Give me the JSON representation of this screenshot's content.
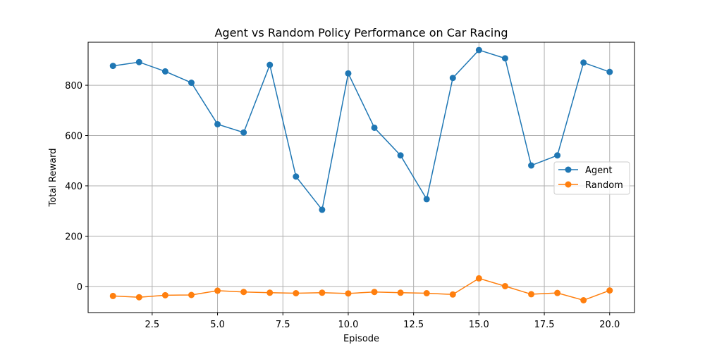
{
  "chart_data": {
    "type": "line",
    "title": "Agent vs Random Policy Performance on Car Racing",
    "xlabel": "Episode",
    "ylabel": "Total Reward",
    "xlim": [
      0.05,
      20.95
    ],
    "ylim": [
      -104,
      971
    ],
    "x_ticks": [
      2.5,
      5.0,
      7.5,
      10.0,
      12.5,
      15.0,
      17.5,
      20.0
    ],
    "x_tick_labels": [
      "2.5",
      "5.0",
      "7.5",
      "10.0",
      "12.5",
      "15.0",
      "17.5",
      "20.0"
    ],
    "y_ticks": [
      0,
      200,
      400,
      600,
      800
    ],
    "y_tick_labels": [
      "0",
      "200",
      "400",
      "600",
      "800"
    ],
    "grid": true,
    "legend_position": "center-right",
    "x": [
      1,
      2,
      3,
      4,
      5,
      6,
      7,
      8,
      9,
      10,
      11,
      12,
      13,
      14,
      15,
      16,
      17,
      18,
      19,
      20
    ],
    "series": [
      {
        "name": "Agent",
        "color": "#1f77b4",
        "values": [
          877,
          892,
          855,
          810,
          645,
          612,
          881,
          437,
          305,
          847,
          631,
          521,
          347,
          829,
          940,
          907,
          481,
          521,
          890,
          853
        ]
      },
      {
        "name": "Random",
        "color": "#ff7f0e",
        "values": [
          -38,
          -43,
          -35,
          -34,
          -17,
          -22,
          -25,
          -27,
          -25,
          -28,
          -22,
          -25,
          -27,
          -32,
          32,
          1,
          -31,
          -26,
          -55,
          -16
        ]
      }
    ]
  }
}
